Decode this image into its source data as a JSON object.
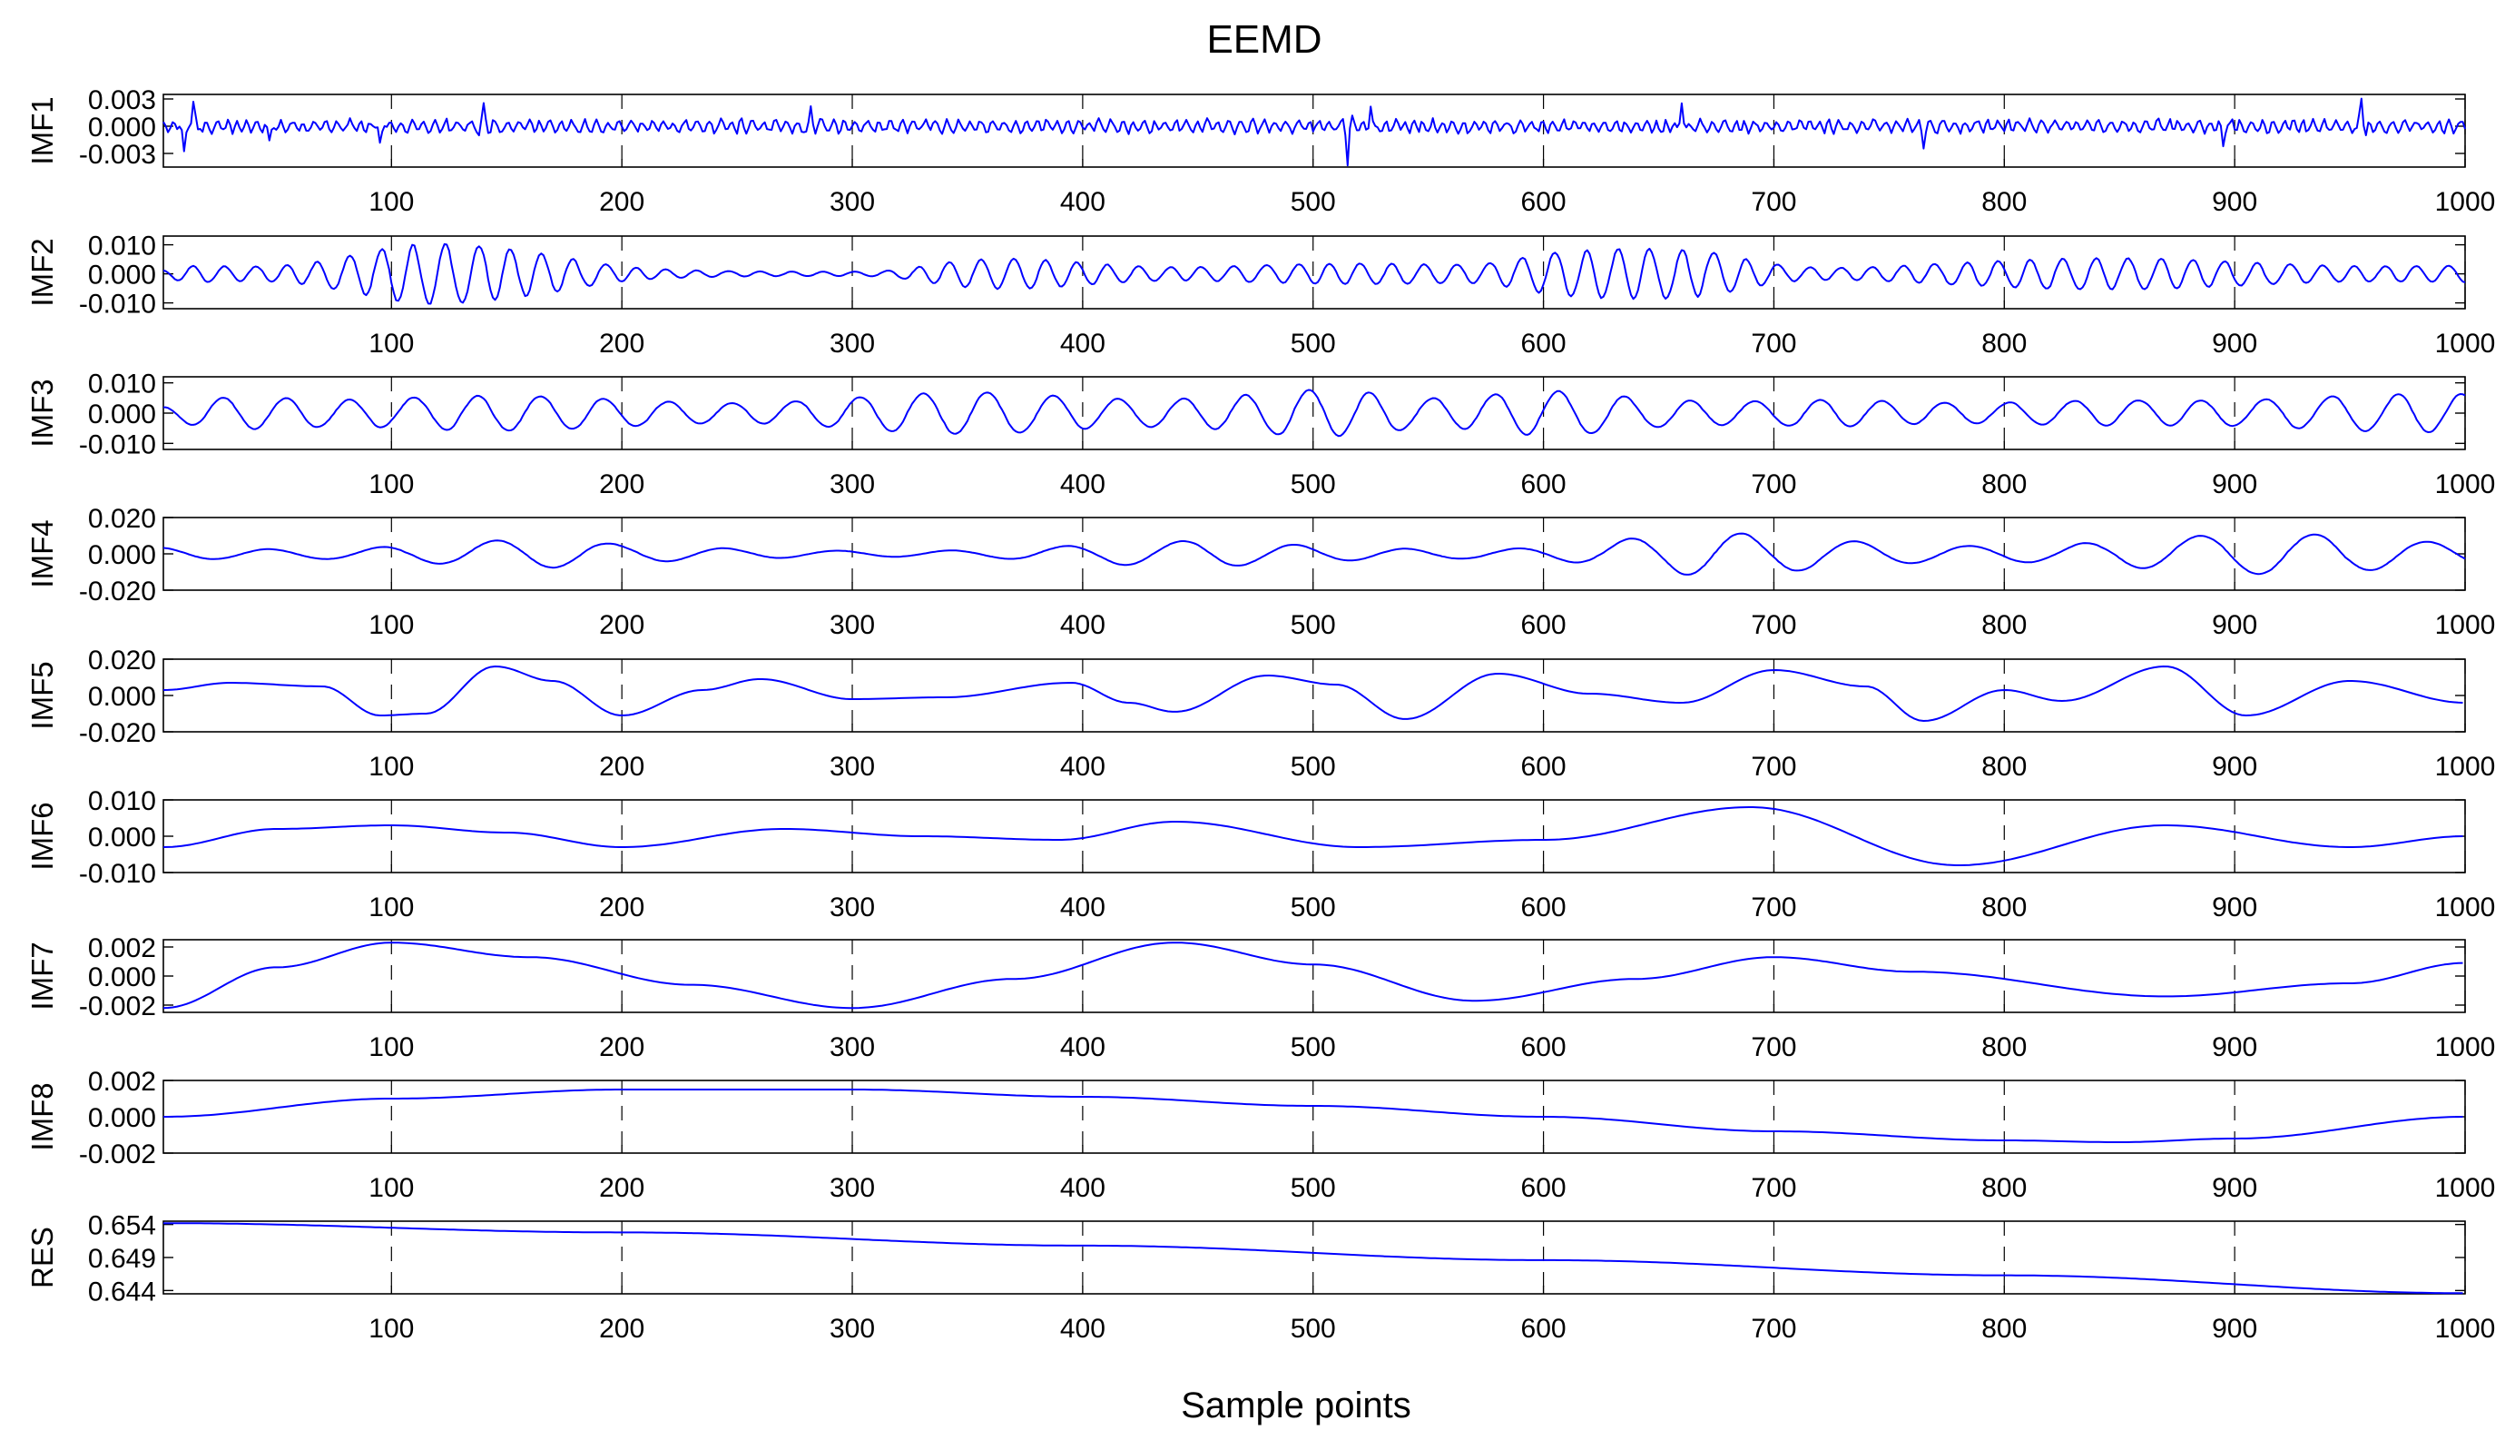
{
  "chart_data": {
    "type": "line",
    "title": "EEMD",
    "xlabel": "Sample points",
    "xlim": [
      1,
      1000
    ],
    "x_ticks": [
      100,
      200,
      300,
      400,
      500,
      600,
      700,
      800,
      900,
      1000
    ],
    "grid": "dashed vertical lines at x ticks",
    "line_color": "#0000ff",
    "panels": [
      {
        "name": "IMF1",
        "ylim": [
          -0.0045,
          0.0035
        ],
        "y_ticks": [
          -0.003,
          0.0,
          0.003
        ],
        "y_tick_labels": [
          "-0.003",
          "0.000",
          "0.003"
        ],
        "signal": {
          "kind": "noise",
          "amp": 0.0009,
          "period": 5,
          "seed": 11,
          "bursts": [
            [
              10,
              -0.0033
            ],
            [
              14,
              0.0025
            ],
            [
              47,
              -0.002
            ],
            [
              95,
              -0.0022
            ],
            [
              140,
              0.0022
            ],
            [
              282,
              0.0015
            ],
            [
              515,
              -0.0038
            ],
            [
              525,
              0.0028
            ],
            [
              660,
              0.0032
            ],
            [
              765,
              -0.0018
            ],
            [
              895,
              -0.002
            ],
            [
              955,
              0.003
            ]
          ]
        }
      },
      {
        "name": "IMF2",
        "ylim": [
          -0.012,
          0.013
        ],
        "y_ticks": [
          -0.01,
          0.0,
          0.01
        ],
        "y_tick_labels": [
          "-0.010",
          "0.000",
          "0.010"
        ],
        "signal": {
          "kind": "wave",
          "period": 14,
          "base": 0.002,
          "seed": 23,
          "env": [
            [
              0,
              0.01
            ],
            [
              30,
              0.004
            ],
            [
              100,
              0.012
            ],
            [
              140,
              0.008
            ],
            [
              200,
              0.002
            ],
            [
              300,
              0.001
            ],
            [
              340,
              0.006
            ],
            [
              420,
              0.003
            ],
            [
              480,
              0.007
            ],
            [
              560,
              0.003
            ],
            [
              600,
              0.009
            ],
            [
              660,
              0.012
            ],
            [
              700,
              0.003
            ],
            [
              760,
              0.005
            ],
            [
              900,
              0.006
            ],
            [
              1000,
              0.004
            ]
          ]
        }
      },
      {
        "name": "IMF3",
        "ylim": [
          -0.012,
          0.012
        ],
        "y_ticks": [
          -0.01,
          0.0,
          0.01
        ],
        "y_tick_labels": [
          "-0.010",
          "0.000",
          "0.010"
        ],
        "signal": {
          "kind": "wave",
          "period": 28,
          "base": 0.003,
          "seed": 37,
          "env": [
            [
              0,
              0.009
            ],
            [
              60,
              0.004
            ],
            [
              170,
              0.01
            ],
            [
              240,
              0.004
            ],
            [
              380,
              0.009
            ],
            [
              480,
              0.01
            ],
            [
              540,
              0.004
            ],
            [
              600,
              0.011
            ],
            [
              650,
              0.008
            ],
            [
              700,
              0.006
            ],
            [
              760,
              0.003
            ],
            [
              900,
              0.009
            ],
            [
              1000,
              0.006
            ]
          ]
        }
      },
      {
        "name": "IMF4",
        "ylim": [
          -0.02,
          0.02
        ],
        "y_ticks": [
          -0.02,
          0.0,
          0.02
        ],
        "y_tick_labels": [
          "-0.020",
          "0.000",
          "0.020"
        ],
        "signal": {
          "kind": "wave",
          "period": 50,
          "base": 0.004,
          "seed": 53,
          "env": [
            [
              0,
              0.004
            ],
            [
              140,
              0.009
            ],
            [
              200,
              0.004
            ],
            [
              330,
              0.003
            ],
            [
              450,
              0.008
            ],
            [
              580,
              0.004
            ],
            [
              660,
              0.013
            ],
            [
              700,
              0.012
            ],
            [
              800,
              0.007
            ],
            [
              950,
              0.014
            ],
            [
              1000,
              0.01
            ]
          ]
        }
      },
      {
        "name": "IMF5",
        "ylim": [
          -0.02,
          0.02
        ],
        "y_ticks": [
          -0.02,
          0.0,
          0.02
        ],
        "y_tick_labels": [
          "-0.020",
          "0.000",
          "0.020"
        ],
        "points": [
          [
            1,
            0.003
          ],
          [
            30,
            0.007
          ],
          [
            70,
            0.005
          ],
          [
            95,
            -0.011
          ],
          [
            115,
            -0.01
          ],
          [
            145,
            0.016
          ],
          [
            170,
            0.008
          ],
          [
            200,
            -0.011
          ],
          [
            235,
            0.003
          ],
          [
            260,
            0.009
          ],
          [
            300,
            -0.002
          ],
          [
            340,
            -0.001
          ],
          [
            395,
            0.007
          ],
          [
            420,
            -0.004
          ],
          [
            440,
            -0.009
          ],
          [
            480,
            0.011
          ],
          [
            510,
            0.006
          ],
          [
            540,
            -0.013
          ],
          [
            580,
            0.012
          ],
          [
            620,
            0.001
          ],
          [
            660,
            -0.004
          ],
          [
            700,
            0.014
          ],
          [
            740,
            0.005
          ],
          [
            765,
            -0.014
          ],
          [
            800,
            0.003
          ],
          [
            825,
            -0.003
          ],
          [
            870,
            0.016
          ],
          [
            905,
            -0.011
          ],
          [
            950,
            0.008
          ],
          [
            1000,
            -0.004
          ]
        ]
      },
      {
        "name": "IMF6",
        "ylim": [
          -0.01,
          0.01
        ],
        "y_ticks": [
          -0.01,
          0.0,
          0.01
        ],
        "y_tick_labels": [
          "-0.010",
          "0.000",
          "0.010"
        ],
        "points": [
          [
            1,
            -0.003
          ],
          [
            50,
            0.002
          ],
          [
            100,
            0.003
          ],
          [
            150,
            0.001
          ],
          [
            200,
            -0.003
          ],
          [
            270,
            0.002
          ],
          [
            330,
            0.0
          ],
          [
            390,
            -0.001
          ],
          [
            440,
            0.004
          ],
          [
            520,
            -0.003
          ],
          [
            600,
            -0.001
          ],
          [
            690,
            0.008
          ],
          [
            780,
            -0.008
          ],
          [
            870,
            0.003
          ],
          [
            950,
            -0.003
          ],
          [
            1000,
            0.0
          ]
        ]
      },
      {
        "name": "IMF7",
        "ylim": [
          -0.0025,
          0.0025
        ],
        "y_ticks": [
          -0.002,
          0.0,
          0.002
        ],
        "y_tick_labels": [
          "-0.002",
          "0.000",
          "0.002"
        ],
        "points": [
          [
            1,
            -0.0022
          ],
          [
            50,
            0.0006
          ],
          [
            100,
            0.0023
          ],
          [
            160,
            0.0013
          ],
          [
            230,
            -0.0006
          ],
          [
            300,
            -0.0022
          ],
          [
            370,
            -0.0002
          ],
          [
            440,
            0.0023
          ],
          [
            500,
            0.0008
          ],
          [
            570,
            -0.0017
          ],
          [
            640,
            -0.0002
          ],
          [
            700,
            0.0013
          ],
          [
            760,
            0.0003
          ],
          [
            870,
            -0.0014
          ],
          [
            950,
            -0.0005
          ],
          [
            1000,
            0.0009
          ]
        ]
      },
      {
        "name": "IMF8",
        "ylim": [
          -0.002,
          0.002
        ],
        "y_ticks": [
          -0.002,
          0.0,
          0.002
        ],
        "y_tick_labels": [
          "-0.002",
          "0.000",
          "0.002"
        ],
        "points": [
          [
            1,
            0.0
          ],
          [
            100,
            0.001
          ],
          [
            200,
            0.0015
          ],
          [
            300,
            0.0015
          ],
          [
            400,
            0.0011
          ],
          [
            500,
            0.0006
          ],
          [
            600,
            0.0
          ],
          [
            700,
            -0.0008
          ],
          [
            800,
            -0.0013
          ],
          [
            850,
            -0.0014
          ],
          [
            900,
            -0.0012
          ],
          [
            1000,
            0.0
          ]
        ]
      },
      {
        "name": "RES",
        "ylim": [
          0.6435,
          0.6545
        ],
        "y_ticks": [
          0.644,
          0.649,
          0.654
        ],
        "y_tick_labels": [
          "0.644",
          "0.649",
          "0.654"
        ],
        "points": [
          [
            1,
            0.6542
          ],
          [
            200,
            0.6528
          ],
          [
            400,
            0.6508
          ],
          [
            600,
            0.6486
          ],
          [
            800,
            0.6463
          ],
          [
            1000,
            0.6436
          ]
        ]
      }
    ]
  }
}
